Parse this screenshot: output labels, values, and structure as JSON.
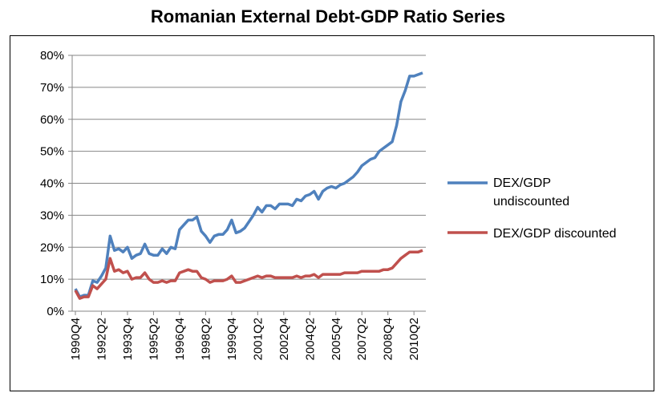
{
  "chart_data": {
    "type": "line",
    "title": "Romanian External Debt-GDP Ratio Series",
    "xlabel": "",
    "ylabel": "",
    "ylim": [
      0,
      80
    ],
    "yticks": [
      "0%",
      "10%",
      "20%",
      "30%",
      "40%",
      "50%",
      "60%",
      "70%",
      "80%"
    ],
    "xtick_labels": [
      "1990Q4",
      "1992Q2",
      "1993Q4",
      "1995Q2",
      "1996Q4",
      "1998Q2",
      "1999Q4",
      "2001Q2",
      "2002Q4",
      "2004Q2",
      "2005Q4",
      "2007Q2",
      "2008Q4",
      "2010Q2"
    ],
    "x_start": "1990Q4",
    "x_end": "2010Q4",
    "grid": "horizontal",
    "legend_position": "right",
    "series": [
      {
        "name": "DEX/GDP undiscounted",
        "color": "#4f81bd",
        "values": [
          7,
          4.5,
          5,
          5,
          9.5,
          9,
          11,
          13.5,
          23.5,
          19,
          19.5,
          18.5,
          20,
          16.5,
          17.5,
          18,
          21,
          18,
          17.5,
          17.5,
          19.5,
          18,
          20,
          19.5,
          25.5,
          27,
          28.5,
          28.5,
          29.5,
          25,
          23.5,
          21.5,
          23.5,
          24,
          24,
          25.5,
          28.5,
          24.5,
          25,
          26,
          28,
          30,
          32.5,
          31,
          33,
          33,
          32,
          33.5,
          33.5,
          33.5,
          33,
          35,
          34.5,
          36,
          36.5,
          37.5,
          35,
          37.5,
          38.5,
          39,
          38.5,
          39.5,
          40,
          41,
          42,
          43.5,
          45.5,
          46.5,
          47.5,
          48,
          50,
          51,
          52,
          53,
          58,
          65.5,
          69,
          73.5,
          73.5,
          74,
          74.5
        ]
      },
      {
        "name": "DEX/GDP discounted",
        "color": "#c0504d",
        "values": [
          6.5,
          4,
          4.5,
          4.5,
          8,
          7,
          8.5,
          10,
          16.5,
          12.5,
          13,
          12,
          12.5,
          10,
          10.5,
          10.5,
          12,
          10,
          9,
          9,
          9.5,
          9,
          9.5,
          9.5,
          12,
          12.5,
          13,
          12.5,
          12.5,
          10.5,
          10,
          9,
          9.5,
          9.5,
          9.5,
          10,
          11,
          9,
          9,
          9.5,
          10,
          10.5,
          11,
          10.5,
          11,
          11,
          10.5,
          10.5,
          10.5,
          10.5,
          10.5,
          11,
          10.5,
          11,
          11,
          11.5,
          10.5,
          11.5,
          11.5,
          11.5,
          11.5,
          11.5,
          12,
          12,
          12,
          12,
          12.5,
          12.5,
          12.5,
          12.5,
          12.5,
          13,
          13,
          13.5,
          15,
          16.5,
          17.5,
          18.5,
          18.5,
          18.5,
          19
        ]
      }
    ]
  }
}
